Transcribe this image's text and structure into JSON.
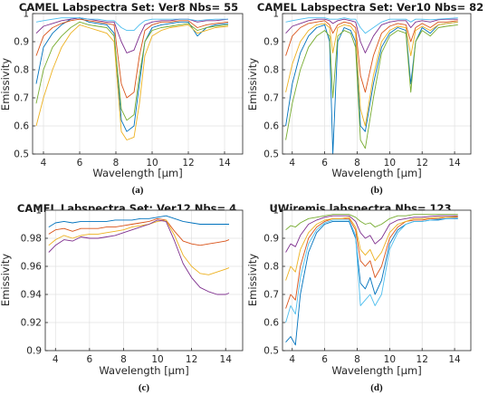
{
  "chart_data": [
    {
      "id": "a",
      "type": "line",
      "title": "CAMEL Labspectra Set: Ver8  Nbs= 55",
      "xlabel": "Wavelength [μm]",
      "ylabel": "Emissivity",
      "caption": "(a)",
      "xlim": [
        3.4,
        15
      ],
      "ylim": [
        0.5,
        1
      ],
      "xticks": [
        4,
        6,
        8,
        10,
        12,
        14
      ],
      "yticks": [
        0.5,
        0.6,
        0.7,
        0.8,
        0.9,
        1
      ],
      "ytick_labels": [
        "0.5",
        "0.6",
        "0.7",
        "0.8",
        "0.9",
        "1"
      ],
      "grid": true,
      "x": [
        3.6,
        4,
        4.5,
        5,
        5.5,
        6,
        6.5,
        7,
        7.5,
        7.9,
        8.3,
        8.6,
        9,
        9.3,
        9.6,
        10,
        10.5,
        11,
        11.5,
        12,
        12.5,
        13,
        13.5,
        14.2
      ],
      "series": [
        {
          "values": [
            0.75,
            0.88,
            0.93,
            0.96,
            0.98,
            0.985,
            0.97,
            0.965,
            0.96,
            0.93,
            0.62,
            0.58,
            0.6,
            0.75,
            0.9,
            0.95,
            0.96,
            0.965,
            0.97,
            0.97,
            0.92,
            0.95,
            0.96,
            0.965
          ]
        },
        {
          "values": [
            0.85,
            0.92,
            0.95,
            0.965,
            0.975,
            0.98,
            0.975,
            0.97,
            0.965,
            0.96,
            0.75,
            0.7,
            0.72,
            0.85,
            0.94,
            0.96,
            0.97,
            0.97,
            0.975,
            0.975,
            0.95,
            0.96,
            0.965,
            0.97
          ]
        },
        {
          "values": [
            0.6,
            0.7,
            0.8,
            0.88,
            0.93,
            0.96,
            0.95,
            0.94,
            0.93,
            0.9,
            0.58,
            0.55,
            0.56,
            0.68,
            0.85,
            0.92,
            0.94,
            0.95,
            0.955,
            0.96,
            0.93,
            0.94,
            0.95,
            0.955
          ]
        },
        {
          "values": [
            0.93,
            0.955,
            0.965,
            0.975,
            0.98,
            0.985,
            0.98,
            0.975,
            0.97,
            0.97,
            0.9,
            0.86,
            0.87,
            0.92,
            0.96,
            0.97,
            0.975,
            0.975,
            0.98,
            0.98,
            0.97,
            0.975,
            0.975,
            0.98
          ]
        },
        {
          "values": [
            0.68,
            0.8,
            0.88,
            0.92,
            0.95,
            0.97,
            0.96,
            0.955,
            0.95,
            0.92,
            0.66,
            0.62,
            0.64,
            0.78,
            0.9,
            0.94,
            0.95,
            0.955,
            0.96,
            0.965,
            0.94,
            0.95,
            0.955,
            0.96
          ]
        },
        {
          "values": [
            0.97,
            0.975,
            0.98,
            0.985,
            0.985,
            0.985,
            0.98,
            0.98,
            0.975,
            0.975,
            0.95,
            0.94,
            0.94,
            0.96,
            0.975,
            0.98,
            0.98,
            0.98,
            0.98,
            0.98,
            0.975,
            0.978,
            0.98,
            0.98
          ]
        }
      ]
    },
    {
      "id": "b",
      "type": "line",
      "title": "CAMEL Labspectra Set: Ver10  Nbs= 82",
      "xlabel": "Wavelength [μm]",
      "ylabel": "Emissivity",
      "caption": "(b)",
      "xlim": [
        3.4,
        15
      ],
      "ylim": [
        0.5,
        1
      ],
      "xticks": [
        4,
        6,
        8,
        10,
        12,
        14
      ],
      "yticks": [
        0.5,
        0.6,
        0.7,
        0.8,
        0.9,
        1
      ],
      "ytick_labels": [
        "0.5",
        "0.6",
        "0.7",
        "0.8",
        "0.9",
        "1"
      ],
      "grid": true,
      "x": [
        3.6,
        4,
        4.5,
        5,
        5.5,
        6,
        6.3,
        6.5,
        6.8,
        7.2,
        7.6,
        7.9,
        8.2,
        8.5,
        9,
        9.5,
        10,
        10.5,
        11,
        11.3,
        11.6,
        12,
        12.5,
        13,
        13.5,
        14.2
      ],
      "series": [
        {
          "values": [
            0.6,
            0.75,
            0.86,
            0.92,
            0.95,
            0.96,
            0.9,
            0.5,
            0.9,
            0.95,
            0.94,
            0.9,
            0.6,
            0.58,
            0.75,
            0.88,
            0.93,
            0.95,
            0.94,
            0.75,
            0.9,
            0.95,
            0.93,
            0.96,
            0.965,
            0.97
          ]
        },
        {
          "values": [
            0.85,
            0.92,
            0.95,
            0.965,
            0.97,
            0.975,
            0.96,
            0.93,
            0.96,
            0.97,
            0.965,
            0.95,
            0.78,
            0.72,
            0.85,
            0.93,
            0.955,
            0.965,
            0.96,
            0.9,
            0.95,
            0.965,
            0.95,
            0.97,
            0.97,
            0.975
          ]
        },
        {
          "values": [
            0.72,
            0.82,
            0.9,
            0.94,
            0.96,
            0.965,
            0.95,
            0.86,
            0.95,
            0.96,
            0.955,
            0.93,
            0.66,
            0.6,
            0.78,
            0.9,
            0.94,
            0.955,
            0.95,
            0.85,
            0.94,
            0.955,
            0.94,
            0.96,
            0.965,
            0.97
          ]
        },
        {
          "values": [
            0.93,
            0.955,
            0.965,
            0.975,
            0.98,
            0.98,
            0.975,
            0.965,
            0.975,
            0.98,
            0.975,
            0.97,
            0.9,
            0.86,
            0.92,
            0.96,
            0.97,
            0.975,
            0.975,
            0.95,
            0.97,
            0.975,
            0.97,
            0.978,
            0.98,
            0.98
          ]
        },
        {
          "values": [
            0.55,
            0.68,
            0.8,
            0.88,
            0.92,
            0.94,
            0.92,
            0.7,
            0.92,
            0.94,
            0.93,
            0.88,
            0.55,
            0.52,
            0.7,
            0.86,
            0.92,
            0.94,
            0.93,
            0.72,
            0.9,
            0.94,
            0.92,
            0.95,
            0.955,
            0.96
          ]
        },
        {
          "values": [
            0.97,
            0.975,
            0.98,
            0.985,
            0.985,
            0.985,
            0.98,
            0.98,
            0.98,
            0.985,
            0.98,
            0.98,
            0.95,
            0.93,
            0.95,
            0.97,
            0.98,
            0.98,
            0.98,
            0.97,
            0.98,
            0.98,
            0.978,
            0.98,
            0.982,
            0.985
          ]
        }
      ]
    },
    {
      "id": "c",
      "type": "line",
      "title": "CAMEL Labspectra Set: Ver12  Nbs= 4",
      "xlabel": "Wavelength [μm]",
      "ylabel": "Emissivity",
      "caption": "(c)",
      "xlim": [
        3.4,
        15
      ],
      "ylim": [
        0.9,
        1
      ],
      "xticks": [
        4,
        6,
        8,
        10,
        12,
        14
      ],
      "yticks": [
        0.9,
        0.92,
        0.94,
        0.96,
        0.98,
        1
      ],
      "ytick_labels": [
        "0.9",
        "0.92",
        "0.94",
        "0.96",
        "0.98",
        "1"
      ],
      "grid": true,
      "x": [
        3.6,
        4,
        4.5,
        5,
        5.5,
        6,
        6.5,
        7,
        7.5,
        8,
        8.5,
        9,
        9.5,
        10,
        10.5,
        11,
        11.5,
        12,
        12.5,
        13,
        13.5,
        14,
        14.2
      ],
      "series": [
        {
          "values": [
            0.988,
            0.991,
            0.992,
            0.991,
            0.992,
            0.992,
            0.992,
            0.992,
            0.993,
            0.993,
            0.993,
            0.994,
            0.994,
            0.995,
            0.996,
            0.994,
            0.992,
            0.991,
            0.99,
            0.99,
            0.99,
            0.99,
            0.99
          ]
        },
        {
          "values": [
            0.983,
            0.986,
            0.987,
            0.985,
            0.987,
            0.987,
            0.987,
            0.988,
            0.988,
            0.989,
            0.99,
            0.991,
            0.992,
            0.994,
            0.993,
            0.985,
            0.978,
            0.976,
            0.975,
            0.976,
            0.977,
            0.978,
            0.979
          ]
        },
        {
          "values": [
            0.975,
            0.979,
            0.982,
            0.98,
            0.982,
            0.983,
            0.983,
            0.984,
            0.985,
            0.986,
            0.988,
            0.989,
            0.99,
            0.992,
            0.993,
            0.982,
            0.968,
            0.96,
            0.955,
            0.954,
            0.956,
            0.958,
            0.959
          ]
        },
        {
          "values": [
            0.97,
            0.975,
            0.979,
            0.978,
            0.981,
            0.98,
            0.98,
            0.981,
            0.982,
            0.984,
            0.986,
            0.988,
            0.99,
            0.993,
            0.992,
            0.978,
            0.962,
            0.952,
            0.945,
            0.942,
            0.94,
            0.94,
            0.941
          ]
        }
      ]
    },
    {
      "id": "d",
      "type": "line",
      "title": "UWiremis labspectra   Nbs= 123",
      "xlabel": "Wavelength [μm]",
      "ylabel": "Emissivity",
      "caption": "(d)",
      "xlim": [
        3.4,
        15
      ],
      "ylim": [
        0.5,
        1
      ],
      "xticks": [
        4,
        6,
        8,
        10,
        12,
        14
      ],
      "yticks": [
        0.5,
        0.6,
        0.7,
        0.8,
        0.9,
        1
      ],
      "ytick_labels": [
        "0.5",
        "0.6",
        "0.7",
        "0.8",
        "0.9",
        "1"
      ],
      "grid": true,
      "x": [
        3.6,
        3.9,
        4.2,
        4.5,
        5,
        5.5,
        6,
        6.5,
        7,
        7.5,
        7.9,
        8.2,
        8.5,
        8.8,
        9.1,
        9.5,
        10,
        10.5,
        11,
        11.5,
        12,
        12.5,
        13,
        13.5,
        14.2
      ],
      "series": [
        {
          "values": [
            0.53,
            0.55,
            0.52,
            0.7,
            0.85,
            0.92,
            0.95,
            0.96,
            0.96,
            0.96,
            0.9,
            0.74,
            0.72,
            0.76,
            0.7,
            0.75,
            0.88,
            0.93,
            0.95,
            0.96,
            0.96,
            0.965,
            0.965,
            0.97,
            0.97
          ]
        },
        {
          "values": [
            0.65,
            0.7,
            0.68,
            0.8,
            0.9,
            0.94,
            0.96,
            0.97,
            0.97,
            0.97,
            0.93,
            0.82,
            0.8,
            0.82,
            0.76,
            0.8,
            0.9,
            0.94,
            0.96,
            0.965,
            0.965,
            0.97,
            0.97,
            0.975,
            0.975
          ]
        },
        {
          "values": [
            0.75,
            0.8,
            0.78,
            0.86,
            0.92,
            0.95,
            0.965,
            0.97,
            0.97,
            0.975,
            0.94,
            0.86,
            0.84,
            0.86,
            0.82,
            0.85,
            0.92,
            0.95,
            0.96,
            0.97,
            0.97,
            0.972,
            0.975,
            0.975,
            0.978
          ]
        },
        {
          "values": [
            0.85,
            0.88,
            0.87,
            0.91,
            0.95,
            0.965,
            0.975,
            0.98,
            0.98,
            0.98,
            0.96,
            0.92,
            0.9,
            0.91,
            0.88,
            0.9,
            0.95,
            0.965,
            0.97,
            0.975,
            0.975,
            0.978,
            0.98,
            0.98,
            0.98
          ]
        },
        {
          "values": [
            0.93,
            0.945,
            0.94,
            0.955,
            0.97,
            0.975,
            0.98,
            0.985,
            0.985,
            0.985,
            0.975,
            0.96,
            0.95,
            0.955,
            0.94,
            0.95,
            0.97,
            0.98,
            0.98,
            0.985,
            0.985,
            0.985,
            0.985,
            0.985,
            0.985
          ]
        },
        {
          "values": [
            0.6,
            0.66,
            0.63,
            0.76,
            0.88,
            0.93,
            0.955,
            0.965,
            0.965,
            0.965,
            0.91,
            0.66,
            0.68,
            0.7,
            0.66,
            0.7,
            0.86,
            0.92,
            0.95,
            0.96,
            0.96,
            0.965,
            0.968,
            0.97,
            0.972
          ]
        }
      ]
    }
  ],
  "colors": [
    "#0072bd",
    "#d95319",
    "#edb120",
    "#7e2f8e",
    "#77ac30",
    "#4dbeee",
    "#a2142f"
  ]
}
